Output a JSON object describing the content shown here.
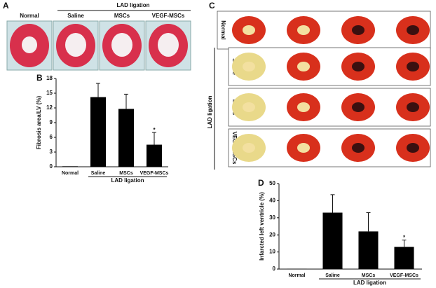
{
  "panel_a": {
    "label": "A",
    "group_label": "LAD ligation",
    "columns": [
      "Normal",
      "Saline",
      "MSCs",
      "VEGF-MSCs"
    ]
  },
  "panel_c": {
    "label": "C",
    "group_label": "LAD ligation",
    "rows": [
      "Normal",
      "Saline",
      "MSCs",
      "VEGF-MSCs"
    ]
  },
  "chart_data": [
    {
      "type": "bar",
      "panel_label": "B",
      "y_label": "Fibrosis area/LV (%)",
      "group_label": "LAD ligation",
      "categories": [
        "Normal",
        "Saline",
        "MSCs",
        "VEGF-MSCs"
      ],
      "values": [
        0.1,
        14.2,
        11.8,
        4.5
      ],
      "errors": [
        0,
        2.8,
        3.0,
        2.5
      ],
      "markers": [
        null,
        null,
        null,
        "*"
      ],
      "color": "#000000",
      "ylim": [
        0,
        18
      ],
      "yticks": [
        0,
        3,
        6,
        9,
        12,
        15,
        18
      ]
    },
    {
      "type": "bar",
      "panel_label": "D",
      "y_label": "Infarcted left ventricle (%)",
      "group_label": "LAD ligation",
      "categories": [
        "Normal",
        "Saline",
        "MSCs",
        "VEGF-MSCs"
      ],
      "values": [
        0.2,
        33,
        22,
        13
      ],
      "errors": [
        0,
        10.5,
        11,
        4
      ],
      "markers": [
        null,
        null,
        null,
        "*"
      ],
      "color": "#000000",
      "ylim": [
        0,
        50
      ],
      "yticks": [
        0,
        10,
        20,
        30,
        40,
        50
      ]
    }
  ]
}
